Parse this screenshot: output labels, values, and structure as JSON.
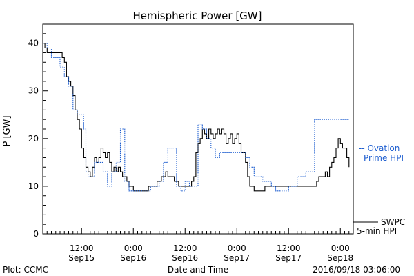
{
  "chart_data": {
    "type": "line",
    "title": "Hemispheric Power [GW]",
    "ylabel": "P [GW]",
    "xlabel": "Date and Time",
    "ylim": [
      0,
      44
    ],
    "xlim": [
      0,
      72
    ],
    "x_unit": "hours since the left edge of the plot",
    "y_ticks": [
      0,
      10,
      20,
      30,
      40
    ],
    "x_ticks": [
      {
        "x": 9,
        "time": "12:00",
        "date": "Sep15"
      },
      {
        "x": 21,
        "time": "0:00",
        "date": "Sep16"
      },
      {
        "x": 33,
        "time": "12:00",
        "date": "Sep16"
      },
      {
        "x": 45,
        "time": "0:00",
        "date": "Sep17"
      },
      {
        "x": 57,
        "time": "12:00",
        "date": "Sep17"
      },
      {
        "x": 69,
        "time": "0:00",
        "date": "Sep18"
      }
    ],
    "grid": false,
    "series": [
      {
        "name": "SWPC 5-min HPI",
        "style": "solid",
        "color": "#000000",
        "points": [
          [
            0,
            40
          ],
          [
            0.5,
            39
          ],
          [
            1,
            38
          ],
          [
            1.5,
            38
          ],
          [
            2,
            38
          ],
          [
            2.5,
            38
          ],
          [
            3,
            38
          ],
          [
            4,
            38
          ],
          [
            4.5,
            37
          ],
          [
            5,
            36
          ],
          [
            5.5,
            33
          ],
          [
            6,
            32
          ],
          [
            6.5,
            31
          ],
          [
            7,
            29
          ],
          [
            7.5,
            26
          ],
          [
            8,
            24
          ],
          [
            8.5,
            22
          ],
          [
            9,
            18
          ],
          [
            9.5,
            16
          ],
          [
            10,
            14
          ],
          [
            10.5,
            13
          ],
          [
            11,
            12
          ],
          [
            11.5,
            14
          ],
          [
            12,
            16
          ],
          [
            12.5,
            15
          ],
          [
            13,
            16
          ],
          [
            13.5,
            18
          ],
          [
            14,
            17
          ],
          [
            14.5,
            16
          ],
          [
            15,
            17
          ],
          [
            15.5,
            15
          ],
          [
            16,
            13
          ],
          [
            16.5,
            14
          ],
          [
            17,
            13
          ],
          [
            17.5,
            14
          ],
          [
            18,
            13
          ],
          [
            18.5,
            12
          ],
          [
            19,
            12
          ],
          [
            19.5,
            11
          ],
          [
            20,
            10
          ],
          [
            20.5,
            10
          ],
          [
            21,
            9
          ],
          [
            22,
            9
          ],
          [
            22.5,
            9
          ],
          [
            23,
            9
          ],
          [
            23.5,
            9
          ],
          [
            24,
            9
          ],
          [
            24.5,
            10
          ],
          [
            25,
            10
          ],
          [
            25.5,
            10
          ],
          [
            26,
            10
          ],
          [
            26.5,
            11
          ],
          [
            27,
            11
          ],
          [
            27.5,
            12
          ],
          [
            28,
            12
          ],
          [
            28.5,
            13
          ],
          [
            29,
            12
          ],
          [
            29.5,
            12
          ],
          [
            30,
            12
          ],
          [
            30.5,
            11
          ],
          [
            31,
            11
          ],
          [
            31.5,
            10
          ],
          [
            32,
            10
          ],
          [
            32.5,
            10
          ],
          [
            33,
            10
          ],
          [
            33.5,
            10
          ],
          [
            34,
            10
          ],
          [
            34.5,
            11
          ],
          [
            35,
            12
          ],
          [
            35.5,
            17
          ],
          [
            36,
            19
          ],
          [
            36.5,
            20
          ],
          [
            37,
            22
          ],
          [
            37.5,
            21
          ],
          [
            38,
            20
          ],
          [
            38.5,
            22
          ],
          [
            39,
            21
          ],
          [
            39.5,
            20
          ],
          [
            40,
            21
          ],
          [
            40.5,
            22
          ],
          [
            41,
            21
          ],
          [
            41.5,
            22
          ],
          [
            42,
            21
          ],
          [
            42.5,
            19
          ],
          [
            43,
            20
          ],
          [
            43.5,
            21
          ],
          [
            44,
            19
          ],
          [
            44.5,
            20
          ],
          [
            45,
            21
          ],
          [
            45.5,
            19
          ],
          [
            46,
            17
          ],
          [
            46.5,
            17
          ],
          [
            47,
            15
          ],
          [
            47.5,
            12
          ],
          [
            48,
            10
          ],
          [
            48.5,
            10
          ],
          [
            49,
            9
          ],
          [
            50,
            9
          ],
          [
            51,
            9
          ],
          [
            51.5,
            10
          ],
          [
            52,
            10
          ],
          [
            53,
            10
          ],
          [
            54,
            10
          ],
          [
            54.5,
            10
          ],
          [
            55,
            10
          ],
          [
            56,
            10
          ],
          [
            57,
            10
          ],
          [
            58,
            10
          ],
          [
            59,
            10
          ],
          [
            60,
            10
          ],
          [
            61,
            10
          ],
          [
            62,
            10
          ],
          [
            63,
            10
          ],
          [
            63.5,
            11
          ],
          [
            64,
            12
          ],
          [
            64.5,
            12
          ],
          [
            65,
            12
          ],
          [
            65.5,
            13
          ],
          [
            66,
            12
          ],
          [
            66.5,
            14
          ],
          [
            67,
            15
          ],
          [
            67.5,
            16
          ],
          [
            68,
            18
          ],
          [
            68.5,
            20
          ],
          [
            69,
            19
          ],
          [
            69.5,
            18
          ],
          [
            70,
            18
          ],
          [
            70.5,
            16
          ],
          [
            71,
            14
          ]
        ]
      },
      {
        "name": "Ovation Prime HPI",
        "style": "dotted",
        "color": "#1f5fd0",
        "points": [
          [
            0,
            40
          ],
          [
            1,
            39
          ],
          [
            2,
            37
          ],
          [
            3,
            37
          ],
          [
            4,
            35
          ],
          [
            5,
            33
          ],
          [
            6,
            31
          ],
          [
            7,
            26
          ],
          [
            8,
            25
          ],
          [
            9,
            25
          ],
          [
            9.5,
            22
          ],
          [
            10,
            13
          ],
          [
            10.5,
            12
          ],
          [
            11,
            12
          ],
          [
            12,
            15
          ],
          [
            13,
            15
          ],
          [
            14,
            13
          ],
          [
            15,
            10
          ],
          [
            16,
            13
          ],
          [
            17,
            15
          ],
          [
            18,
            22
          ],
          [
            19,
            11
          ],
          [
            20,
            9
          ],
          [
            21,
            9
          ],
          [
            22,
            9
          ],
          [
            23,
            9
          ],
          [
            24,
            9
          ],
          [
            25,
            10
          ],
          [
            26,
            10
          ],
          [
            27,
            11
          ],
          [
            28,
            15
          ],
          [
            29,
            18
          ],
          [
            30,
            18
          ],
          [
            31,
            10
          ],
          [
            32,
            9
          ],
          [
            33,
            11
          ],
          [
            34,
            10
          ],
          [
            35,
            10
          ],
          [
            36,
            23
          ],
          [
            37,
            22
          ],
          [
            38,
            20
          ],
          [
            39,
            18
          ],
          [
            40,
            16
          ],
          [
            41,
            17
          ],
          [
            42,
            17
          ],
          [
            43,
            17
          ],
          [
            44,
            17
          ],
          [
            45,
            17
          ],
          [
            46,
            17
          ],
          [
            47,
            16
          ],
          [
            48,
            14
          ],
          [
            49,
            12
          ],
          [
            50,
            12
          ],
          [
            51,
            11
          ],
          [
            52,
            11
          ],
          [
            53,
            10
          ],
          [
            54,
            9
          ],
          [
            55,
            9
          ],
          [
            56,
            9
          ],
          [
            57,
            10
          ],
          [
            58,
            10
          ],
          [
            59,
            12
          ],
          [
            60,
            12
          ],
          [
            61,
            13
          ],
          [
            62,
            13
          ],
          [
            63,
            24
          ],
          [
            64,
            24
          ],
          [
            65,
            24
          ],
          [
            66,
            24
          ],
          [
            67,
            24
          ],
          [
            68,
            24
          ],
          [
            69,
            24
          ],
          [
            70,
            24
          ],
          [
            71,
            24
          ]
        ]
      }
    ]
  },
  "legend": {
    "ovation": {
      "line1": "-- Ovation",
      "line2": "Prime HPI",
      "color": "#1f5fd0"
    },
    "swpc": {
      "line1": "SWPC",
      "line2": "5-min HPI",
      "color": "#000000"
    }
  },
  "footer": {
    "plot_credit": "Plot: CCMC",
    "axis_caption": "Date and Time",
    "timestamp": "2016/09/18 03:06:00"
  }
}
